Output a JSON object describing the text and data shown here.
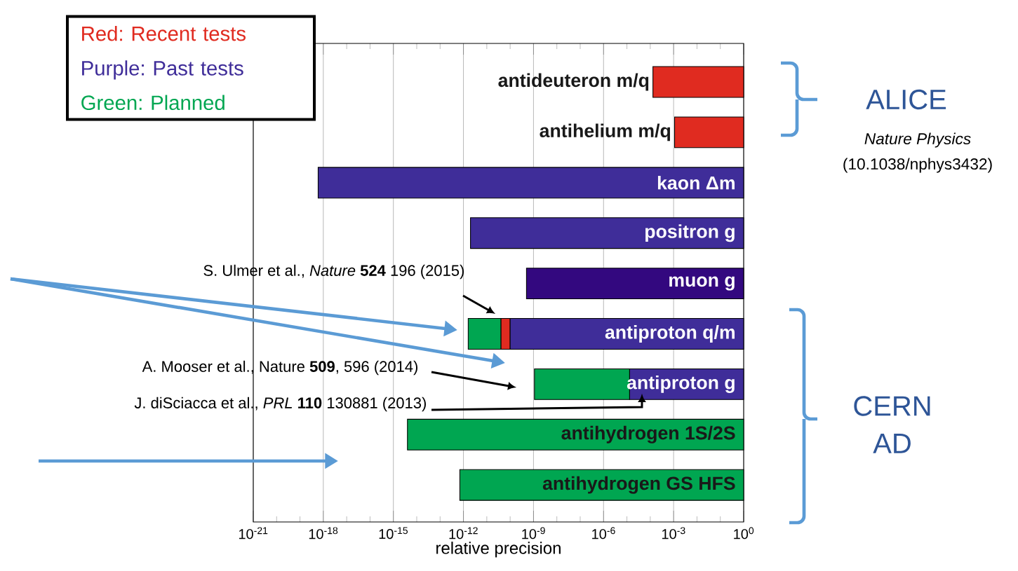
{
  "chart_data": {
    "type": "bar",
    "orientation": "horizontal",
    "categories": [
      "antideuteron m/q",
      "antihelium m/q",
      "kaon Δm",
      "positron g",
      "muon g",
      "antiproton q/m",
      "antiproton g",
      "antihydrogen 1S/2S",
      "antihydrogen GS HFS"
    ],
    "series": [
      {
        "name": "Red: Recent tests",
        "color": "#e02b20",
        "base": [
          0.00013,
          0.0011,
          null,
          null,
          null,
          4e-11,
          null,
          null,
          null
        ],
        "values": [
          0.99987,
          0.9989,
          null,
          null,
          null,
          6e-11,
          null,
          null,
          null
        ]
      },
      {
        "name": "Purple: Past tests",
        "color": "#3f2d99",
        "colors": [
          null,
          null,
          "#3f2d99",
          "#3f2d99",
          "#33087f",
          "#3f2d99",
          "#3f2d99",
          null,
          null
        ],
        "base": [
          null,
          null,
          6e-19,
          2e-12,
          5e-10,
          1e-10,
          1.3e-05,
          null,
          null
        ],
        "values": [
          null,
          null,
          1,
          0.999999999998,
          0.9999999995,
          0.9999999999,
          0.999987,
          null,
          null
        ]
      },
      {
        "name": "Green: Planned",
        "color": "#00a651",
        "base": [
          null,
          null,
          null,
          null,
          null,
          1.6e-12,
          1.1e-09,
          4e-15,
          7e-13
        ],
        "values": [
          null,
          null,
          null,
          null,
          null,
          3.84e-11,
          1.2989e-05,
          0.999999999999996,
          0.9999999999993
        ]
      }
    ],
    "xlim": [
      1e-21,
      1
    ],
    "xticks": [
      {
        "value": 1e-21,
        "label": "10$^{-21}$"
      },
      {
        "value": 1e-20,
        "label": null
      },
      {
        "value": 1e-19,
        "label": null
      },
      {
        "value": 1e-18,
        "label": "10$^{-18}$"
      },
      {
        "value": 1e-17,
        "label": null
      },
      {
        "value": 1e-16,
        "label": null
      },
      {
        "value": 1e-15,
        "label": "10$^{-15}$"
      },
      {
        "value": 1e-14,
        "label": null
      },
      {
        "value": 1e-13,
        "label": null
      },
      {
        "value": 1e-12,
        "label": "10$^{-12}$"
      },
      {
        "value": 1e-11,
        "label": null
      },
      {
        "value": 1e-10,
        "label": null
      },
      {
        "value": 1e-09,
        "label": "10$^{-9}$"
      },
      {
        "value": 1e-08,
        "label": null
      },
      {
        "value": 1e-07,
        "label": null
      },
      {
        "value": 1e-06,
        "label": "10$^{-6}$"
      },
      {
        "value": 1e-05,
        "label": null
      },
      {
        "value": 0.0001,
        "label": null
      },
      {
        "value": 0.001,
        "label": "10$^{-3}$"
      },
      {
        "value": 0.01,
        "label": null
      },
      {
        "value": 0.1,
        "label": null
      },
      {
        "value": 1,
        "label": "10$^{0}$"
      }
    ],
    "xlabel": "relative precision",
    "grid": "x",
    "log": "x",
    "legend": "top left",
    "annotations": [
      "S. Ulmer et al., *Nature* **524** 196 (2015)",
      "A. Mooser et al., Nature **509**, 596 (2014)",
      "J. diSciacca et al., *PRL* **110** 130881 (2013)",
      "ALICE",
      "Nature Physics",
      "(10.1038/nphys3432)",
      "CERN AD"
    ]
  }
}
